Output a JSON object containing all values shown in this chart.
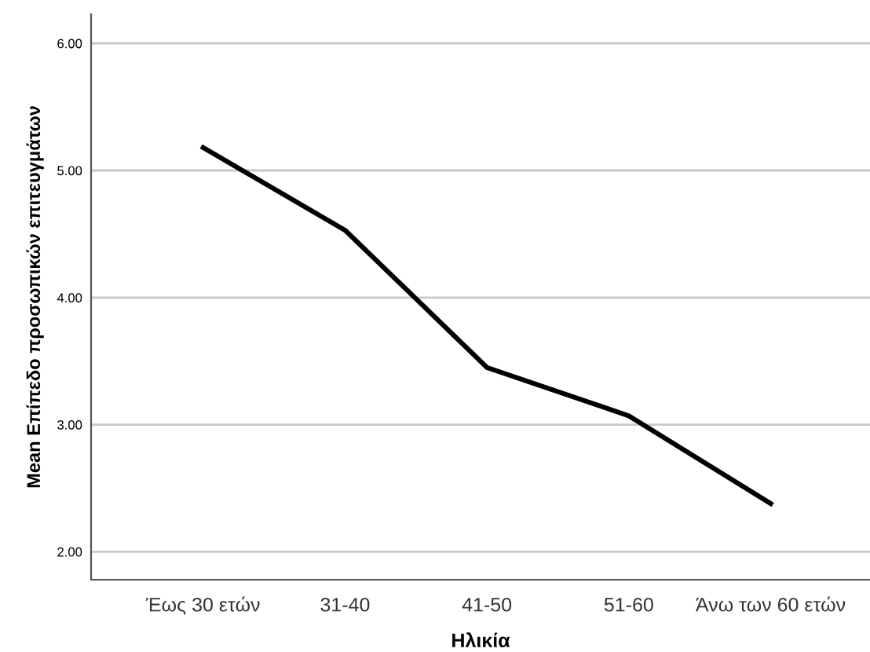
{
  "chart_data": {
    "type": "line",
    "xlabel": "Ηλικία",
    "ylabel": "Mean Επίπεδο προσωπικών επιτευγμάτων",
    "categories": [
      "Έως 30 ετών",
      "31-40",
      "41-50",
      "51-60",
      "Άνω των 60 ετών"
    ],
    "series": [
      {
        "color": "#000000",
        "values": [
          5.18,
          4.53,
          3.45,
          3.07,
          2.38
        ]
      }
    ],
    "ylim": [
      1.78,
      6.23
    ],
    "yticks": [
      {
        "value": 2,
        "label": "2.00"
      },
      {
        "value": 3,
        "label": "3.00"
      },
      {
        "value": 4,
        "label": "4.00"
      },
      {
        "value": 5,
        "label": "5.00"
      },
      {
        "value": 6,
        "label": "6.00"
      }
    ],
    "grid": "y",
    "marker": "none",
    "line_style": "solid"
  }
}
